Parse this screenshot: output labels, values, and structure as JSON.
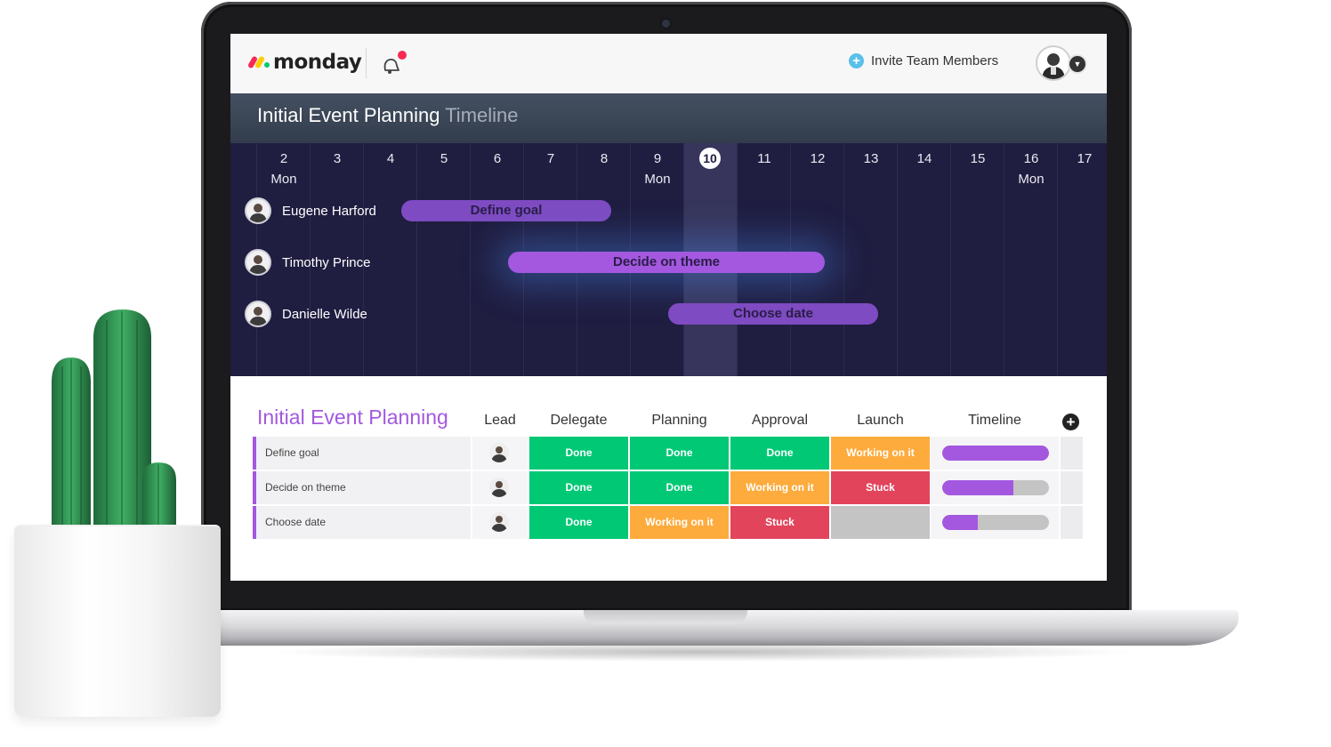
{
  "brand": {
    "name": "monday"
  },
  "header": {
    "invite_label": "Invite Team Members"
  },
  "timeline": {
    "title": "Initial Event Planning",
    "title_suffix": "Timeline",
    "days": [
      {
        "num": "2",
        "name": "Mon"
      },
      {
        "num": "3",
        "name": ""
      },
      {
        "num": "4",
        "name": ""
      },
      {
        "num": "5",
        "name": ""
      },
      {
        "num": "6",
        "name": ""
      },
      {
        "num": "7",
        "name": ""
      },
      {
        "num": "8",
        "name": ""
      },
      {
        "num": "9",
        "name": "Mon"
      },
      {
        "num": "10",
        "name": "",
        "today": true
      },
      {
        "num": "11",
        "name": ""
      },
      {
        "num": "12",
        "name": ""
      },
      {
        "num": "13",
        "name": ""
      },
      {
        "num": "14",
        "name": ""
      },
      {
        "num": "15",
        "name": ""
      },
      {
        "num": "16",
        "name": "Mon"
      },
      {
        "num": "17",
        "name": ""
      }
    ],
    "people": [
      "Eugene Harford",
      "Timothy Prince",
      "Danielle Wilde"
    ],
    "tasks": [
      {
        "label": "Define goal",
        "start_day": 5,
        "end_day": 8
      },
      {
        "label": "Decide on theme",
        "start_day": 7,
        "end_day": 12
      },
      {
        "label": "Choose date",
        "start_day": 10,
        "end_day": 13
      }
    ]
  },
  "board": {
    "title": "Initial Event Planning",
    "columns": [
      "Lead",
      "Delegate",
      "Planning",
      "Approval",
      "Launch",
      "Timeline"
    ],
    "status_colors": {
      "Done": "#00c875",
      "Working on it": "#fdab3d",
      "Stuck": "#e2445c",
      "": "#c4c4c4"
    },
    "rows": [
      {
        "name": "Define goal",
        "statuses": [
          "Done",
          "Done",
          "Done",
          "Working on it"
        ],
        "timeline_progress": 1.0
      },
      {
        "name": "Decide on theme",
        "statuses": [
          "Done",
          "Done",
          "Working on it",
          "Stuck"
        ],
        "timeline_progress": 0.67
      },
      {
        "name": "Choose date",
        "statuses": [
          "Done",
          "Working on it",
          "Stuck",
          ""
        ],
        "timeline_progress": 0.33
      }
    ]
  },
  "colors": {
    "accent": "#a358df",
    "timeline_bg": "#1f1d40"
  }
}
